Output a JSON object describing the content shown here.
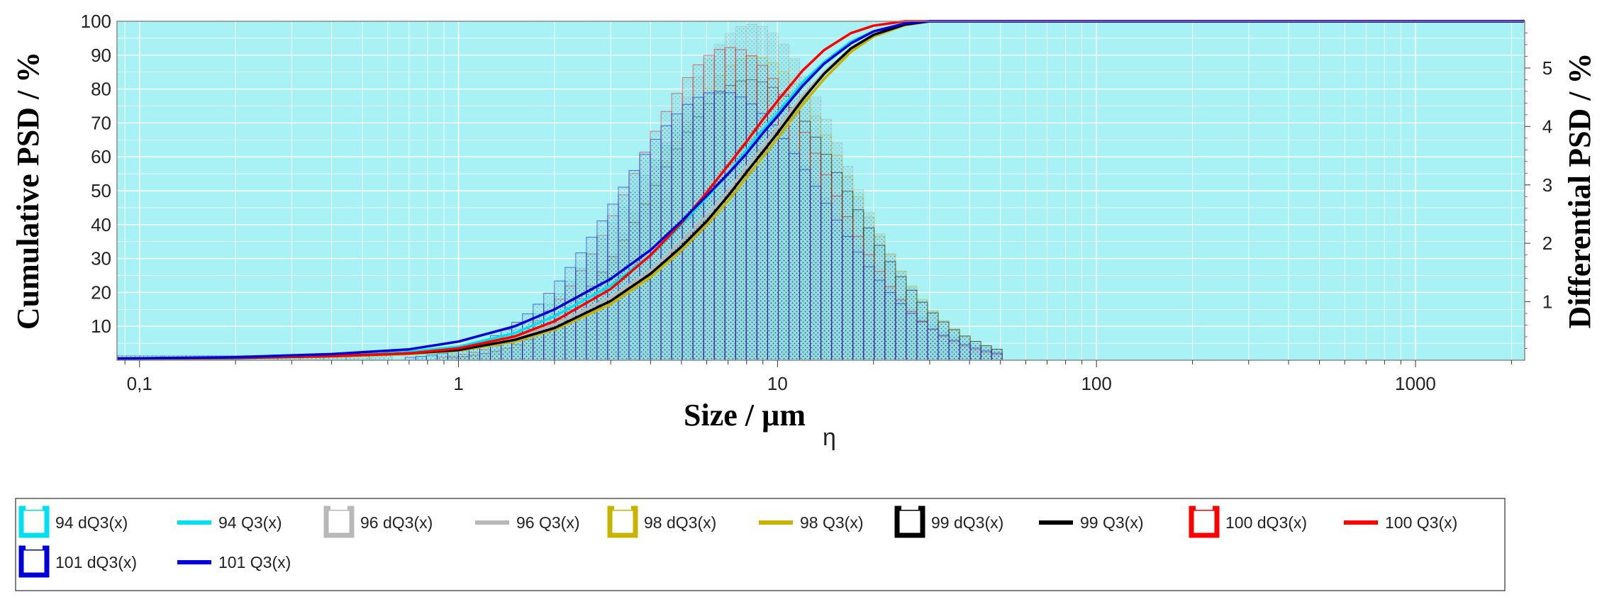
{
  "colors": {
    "plot_background": "#a8f2f5",
    "grid": "#ffffff",
    "frame": "#8a8a8a",
    "bar_fill": "#8fd9e2",
    "bar_stroke": "#4d6f78",
    "cyan": "#00e0ee",
    "grey": "#b8b8b8",
    "olive": "#c8b400",
    "black": "#000000",
    "red": "#ff0000",
    "blue": "#0000d8"
  },
  "chart_data": {
    "type": "bar+line",
    "xscale": "log",
    "xlim": [
      0.085,
      2200
    ],
    "ylim": [
      0,
      100
    ],
    "y2lim": [
      0,
      5.8
    ],
    "xlabel": "Size / µm",
    "xlabel_suffix": "η",
    "ylabel": "Cumulative PSD / %",
    "y2label": "Differential PSD / %",
    "x_ticks": [
      {
        "value": 0.1,
        "label": "0,1"
      },
      {
        "value": 1,
        "label": "1"
      },
      {
        "value": 10,
        "label": "10"
      },
      {
        "value": 100,
        "label": "100"
      },
      {
        "value": 1000,
        "label": "1000"
      }
    ],
    "y_ticks": [
      {
        "value": 10,
        "label": "10"
      },
      {
        "value": 20,
        "label": "20"
      },
      {
        "value": 30,
        "label": "30"
      },
      {
        "value": 40,
        "label": "40"
      },
      {
        "value": 50,
        "label": "50"
      },
      {
        "value": 60,
        "label": "60"
      },
      {
        "value": 70,
        "label": "70"
      },
      {
        "value": 80,
        "label": "80"
      },
      {
        "value": 90,
        "label": "90"
      },
      {
        "value": 100,
        "label": "100"
      }
    ],
    "y2_ticks": [
      {
        "value": 1,
        "label": "1"
      },
      {
        "value": 2,
        "label": "2"
      },
      {
        "value": 3,
        "label": "3"
      },
      {
        "value": 4,
        "label": "4"
      },
      {
        "value": 5,
        "label": "5"
      }
    ],
    "histogram_bins": {
      "x_start": 0.5,
      "ratio": 1.08,
      "count": 60
    },
    "differential_series": [
      {
        "name": "94 dQ3(x)",
        "color_key": "cyan",
        "mode": 7.0,
        "sigma": 0.74,
        "peak": 4.4
      },
      {
        "name": "96 dQ3(x)",
        "color_key": "grey",
        "mode": 8.3,
        "sigma": 0.66,
        "peak": 5.75
      },
      {
        "name": "98 dQ3(x)",
        "color_key": "olive",
        "mode": 8.4,
        "sigma": 0.68,
        "peak": 5.2
      },
      {
        "name": "99 dQ3(x)",
        "color_key": "black",
        "mode": 8.2,
        "sigma": 0.7,
        "peak": 4.8
      },
      {
        "name": "100 dQ3(x)",
        "color_key": "red",
        "mode": 7.1,
        "sigma": 0.68,
        "peak": 5.35
      },
      {
        "name": "101 dQ3(x)",
        "color_key": "blue",
        "mode": 6.6,
        "sigma": 0.74,
        "peak": 4.6
      }
    ],
    "cumulative_series": [
      {
        "name": "94 Q3(x)",
        "color_key": "cyan",
        "x": [
          0.085,
          0.2,
          0.4,
          0.7,
          1.0,
          1.5,
          2.0,
          3.0,
          4.0,
          5.0,
          6.0,
          7.0,
          8.0,
          9.0,
          10.0,
          12.0,
          14.0,
          17.0,
          20.0,
          25.0,
          30.0,
          40.0,
          2200
        ],
        "y": [
          0.5,
          0.8,
          1.5,
          2.5,
          4.0,
          8.0,
          13.0,
          22.0,
          31.0,
          40.0,
          48.0,
          55.0,
          62.0,
          68.0,
          73.0,
          82.0,
          88.0,
          94.0,
          97.0,
          99.3,
          100,
          100,
          100
        ]
      },
      {
        "name": "96 Q3(x)",
        "color_key": "grey",
        "x": [
          0.085,
          0.2,
          0.4,
          0.7,
          1.0,
          1.5,
          2.0,
          3.0,
          4.0,
          5.0,
          6.0,
          7.0,
          8.0,
          9.0,
          10.0,
          12.0,
          14.0,
          17.0,
          20.0,
          25.0,
          30.0,
          40.0,
          2200
        ],
        "y": [
          0.5,
          0.7,
          1.2,
          2.0,
          3.2,
          6.5,
          10.5,
          18.5,
          26.5,
          35.0,
          42.5,
          50.0,
          57.0,
          63.0,
          68.5,
          78.0,
          85.0,
          92.0,
          96.0,
          99.0,
          100,
          100,
          100
        ]
      },
      {
        "name": "98 Q3(x)",
        "color_key": "olive",
        "x": [
          0.085,
          0.2,
          0.4,
          0.7,
          1.0,
          1.5,
          2.0,
          3.0,
          4.0,
          5.0,
          6.0,
          7.0,
          8.0,
          9.0,
          10.0,
          12.0,
          14.0,
          17.0,
          20.0,
          25.0,
          30.0,
          40.0,
          2200
        ],
        "y": [
          0.5,
          0.7,
          1.1,
          1.8,
          2.8,
          5.5,
          9.0,
          16.5,
          24.5,
          32.5,
          40.0,
          47.0,
          54.0,
          60.0,
          65.5,
          75.5,
          83.0,
          91.0,
          95.5,
          98.8,
          100,
          100,
          100
        ]
      },
      {
        "name": "99 Q3(x)",
        "color_key": "black",
        "x": [
          0.085,
          0.2,
          0.4,
          0.7,
          1.0,
          1.5,
          2.0,
          3.0,
          4.0,
          5.0,
          6.0,
          7.0,
          8.0,
          9.0,
          10.0,
          12.0,
          14.0,
          17.0,
          20.0,
          25.0,
          30.0,
          40.0,
          2200
        ],
        "y": [
          0.5,
          0.7,
          1.2,
          2.0,
          3.0,
          6.0,
          9.5,
          17.5,
          25.5,
          33.5,
          41.0,
          48.5,
          55.5,
          61.5,
          67.0,
          77.0,
          84.5,
          92.0,
          96.0,
          99.0,
          100,
          100,
          100
        ]
      },
      {
        "name": "100 Q3(x)",
        "color_key": "red",
        "x": [
          0.085,
          0.2,
          0.4,
          0.7,
          1.0,
          1.5,
          2.0,
          3.0,
          4.0,
          5.0,
          6.0,
          7.0,
          8.0,
          9.0,
          10.0,
          12.0,
          14.0,
          17.0,
          20.0,
          25.0,
          30.0,
          40.0,
          2200
        ],
        "y": [
          0.5,
          0.8,
          1.2,
          2.0,
          3.5,
          7.0,
          11.5,
          21.0,
          31.0,
          40.5,
          49.5,
          57.5,
          64.5,
          71.0,
          76.5,
          85.5,
          91.5,
          96.5,
          98.7,
          100,
          100,
          100,
          100
        ]
      },
      {
        "name": "101 Q3(x)",
        "color_key": "blue",
        "x": [
          0.085,
          0.2,
          0.4,
          0.7,
          1.0,
          1.5,
          2.0,
          3.0,
          4.0,
          5.0,
          6.0,
          7.0,
          8.0,
          9.0,
          10.0,
          12.0,
          14.0,
          17.0,
          20.0,
          25.0,
          30.0,
          40.0,
          2200
        ],
        "y": [
          0.5,
          0.9,
          1.8,
          3.2,
          5.5,
          10.0,
          15.0,
          24.0,
          32.5,
          41.0,
          48.5,
          55.0,
          61.0,
          67.0,
          72.0,
          81.0,
          87.5,
          93.5,
          97.0,
          99.3,
          100,
          100,
          100
        ]
      }
    ],
    "legend": [
      {
        "label": "94 dQ3(x)",
        "kind": "bar",
        "color_key": "cyan"
      },
      {
        "label": "94 Q3(x)",
        "kind": "line",
        "color_key": "cyan"
      },
      {
        "label": "96 dQ3(x)",
        "kind": "bar",
        "color_key": "grey"
      },
      {
        "label": "96 Q3(x)",
        "kind": "line",
        "color_key": "grey"
      },
      {
        "label": "98 dQ3(x)",
        "kind": "bar",
        "color_key": "olive"
      },
      {
        "label": "98 Q3(x)",
        "kind": "line",
        "color_key": "olive"
      },
      {
        "label": "99 dQ3(x)",
        "kind": "bar",
        "color_key": "black"
      },
      {
        "label": "99 Q3(x)",
        "kind": "line",
        "color_key": "black"
      },
      {
        "label": "100 dQ3(x)",
        "kind": "bar",
        "color_key": "red"
      },
      {
        "label": "100 Q3(x)",
        "kind": "line",
        "color_key": "red"
      },
      {
        "label": "101 dQ3(x)",
        "kind": "bar",
        "color_key": "blue"
      },
      {
        "label": "101 Q3(x)",
        "kind": "line",
        "color_key": "blue"
      }
    ],
    "legend_placement": "bottom"
  }
}
